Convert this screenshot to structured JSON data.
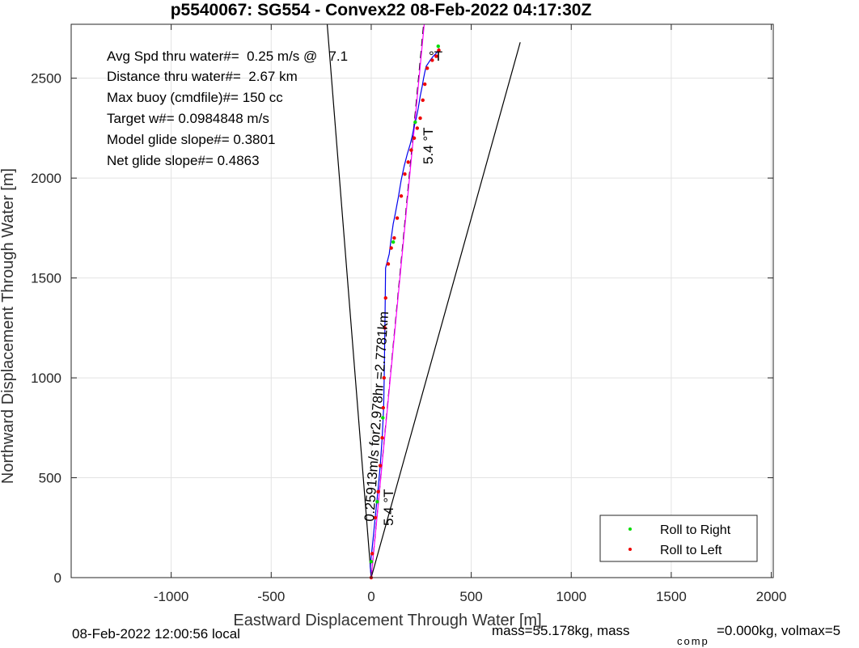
{
  "chart_data": {
    "type": "line",
    "title": "p5540067: SG554 - Convex22 08-Feb-2022 04:17:30Z",
    "xlabel": "Eastward Displacement Through Water [m]",
    "ylabel": "Northward Displacement Through Water [m]",
    "xlim": [
      -1500,
      2010
    ],
    "ylim": [
      0,
      2770
    ],
    "xticks": [
      -1000,
      -500,
      0,
      500,
      1000,
      1500,
      2000
    ],
    "xtick_labels": [
      "-1000",
      "-500",
      "0",
      "500",
      "1000",
      "1500",
      "2000"
    ],
    "yticks": [
      0,
      500,
      1000,
      1500,
      2000,
      2500
    ],
    "ytick_labels": [
      "0",
      "500",
      "1000",
      "1500",
      "2000",
      "2500"
    ],
    "grid": true,
    "stats": [
      "Avg Spd thru water#=  0.25 m/s @   7.1",
      "Distance thru water#=  2.67 km",
      "Max buoy (cmdfile)#= 150 cc",
      "Target w#= 0.0984848 m/s",
      "Model glide slope#= 0.3801",
      "Net glide slope#= 0.4863"
    ],
    "degree_suffix": "°T",
    "annotations": {
      "heading_top": "5.4 °T",
      "heading_bottom": "5.4 °T",
      "speed_line": "0.25913m/s for2.978hr =2.7781km"
    },
    "legend": {
      "placement": "lower-right",
      "entries": [
        {
          "label": "Roll to Right",
          "color": "#00dd00"
        },
        {
          "label": "Roll to Left",
          "color": "#ee0000"
        }
      ]
    },
    "track": {
      "color": "#0000ee",
      "x": [
        0,
        -5,
        5,
        15,
        25,
        35,
        45,
        55,
        62,
        65,
        67,
        69,
        70,
        72,
        80,
        90,
        100,
        110,
        120,
        135,
        150,
        165,
        180,
        195,
        205,
        215,
        225,
        235,
        245,
        255,
        262,
        268,
        275,
        285,
        295,
        310,
        325,
        335,
        340
      ],
      "y": [
        0,
        60,
        150,
        250,
        350,
        450,
        560,
        700,
        850,
        1000,
        1150,
        1300,
        1400,
        1550,
        1580,
        1620,
        1700,
        1770,
        1820,
        1900,
        1990,
        2060,
        2120,
        2170,
        2210,
        2260,
        2300,
        2350,
        2410,
        2460,
        2500,
        2530,
        2560,
        2575,
        2590,
        2610,
        2625,
        2640,
        2650
      ]
    },
    "roll_left_points": {
      "x": [
        0,
        5,
        20,
        35,
        45,
        55,
        60,
        64,
        68,
        72,
        85,
        100,
        115,
        130,
        150,
        168,
        185,
        200,
        215,
        230,
        245,
        258,
        268,
        280,
        305,
        325,
        338
      ],
      "y": [
        0,
        120,
        300,
        430,
        560,
        700,
        850,
        1000,
        1250,
        1400,
        1570,
        1650,
        1700,
        1800,
        1910,
        2020,
        2080,
        2140,
        2200,
        2250,
        2300,
        2390,
        2470,
        2550,
        2590,
        2610,
        2640
      ]
    },
    "roll_right_points": {
      "x": [
        0,
        30,
        58,
        110,
        220,
        335
      ],
      "y": [
        80,
        380,
        800,
        1680,
        2280,
        2660
      ]
    },
    "reference_lines": {
      "cone_left": {
        "x": [
          0,
          -220
        ],
        "y": [
          0,
          2770
        ],
        "color": "#000000",
        "style": "solid"
      },
      "cone_right": {
        "x": [
          0,
          745
        ],
        "y": [
          0,
          2680
        ],
        "color": "#000000",
        "style": "solid"
      },
      "heading_line": {
        "x": [
          0,
          262
        ],
        "y": [
          0,
          2770
        ],
        "color": "#000000",
        "style": "dashed"
      },
      "current_line": {
        "x": [
          0,
          265
        ],
        "y": [
          0,
          2770
        ],
        "color": "#ff00ff",
        "style": "solid"
      }
    }
  },
  "footer": {
    "local_time": "08-Feb-2022 12:00:56 local",
    "mass_text": "mass=55.178kg, mass",
    "mass_sub": "comp",
    "mass_comp_text": "=0.000kg, volmax=5"
  }
}
